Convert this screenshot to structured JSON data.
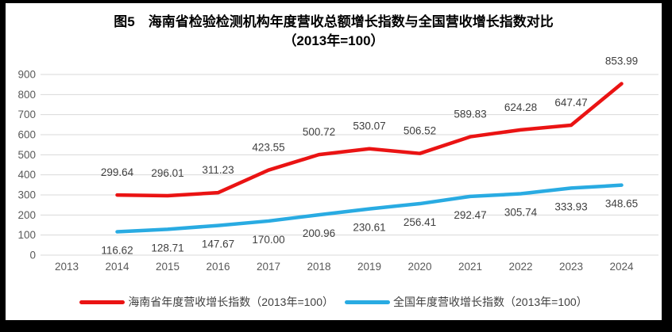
{
  "title": {
    "line1": "图5　海南省检验检测机构年度营收总额增长指数与全国营收增长指数对比",
    "line2": "（2013年=100）"
  },
  "colors": {
    "hainan_red": "#ea1313",
    "national_blue": "#29abe2",
    "gridline": "#d9d9d9",
    "axis_text": "#595959",
    "label_text": "#3f3f3f",
    "frame": "#000000",
    "background": "#ffffff"
  },
  "chart_data": {
    "type": "line",
    "title": "图5　海南省检验检测机构年度营收总额增长指数与全国营收增长指数对比（2013年=100）",
    "x_categories": [
      2013,
      2014,
      2015,
      2016,
      2017,
      2018,
      2019,
      2020,
      2021,
      2022,
      2023,
      2024
    ],
    "xlabel": "",
    "ylabel": "",
    "ylim": [
      0,
      900
    ],
    "ytick_step": 100,
    "yticks": [
      0,
      100,
      200,
      300,
      400,
      500,
      600,
      700,
      800,
      900
    ],
    "grid": true,
    "legend_position": "bottom",
    "data_labels": true,
    "series": [
      {
        "id": "hainan",
        "name": "海南省年度营收增长指数（2013年=100）",
        "color": "#ea1313",
        "label_position": "above",
        "x": [
          2014,
          2015,
          2016,
          2017,
          2018,
          2019,
          2020,
          2021,
          2022,
          2023,
          2024
        ],
        "values": [
          299.64,
          296.01,
          311.23,
          423.55,
          500.72,
          530.07,
          506.52,
          589.83,
          624.28,
          647.47,
          853.99
        ]
      },
      {
        "id": "national",
        "name": "全国年度营收增长指数（2013年=100）",
        "color": "#29abe2",
        "label_position": "below",
        "x": [
          2014,
          2015,
          2016,
          2017,
          2018,
          2019,
          2020,
          2021,
          2022,
          2023,
          2024
        ],
        "values": [
          116.62,
          128.71,
          147.67,
          170.0,
          200.96,
          230.61,
          256.41,
          292.47,
          305.74,
          333.93,
          348.65
        ]
      }
    ]
  },
  "legend": {
    "items": [
      {
        "label": "海南省年度营收增长指数（2013年=100）",
        "color": "#ea1313"
      },
      {
        "label": "全国年度营收增长指数（2013年=100）",
        "color": "#29abe2"
      }
    ]
  }
}
